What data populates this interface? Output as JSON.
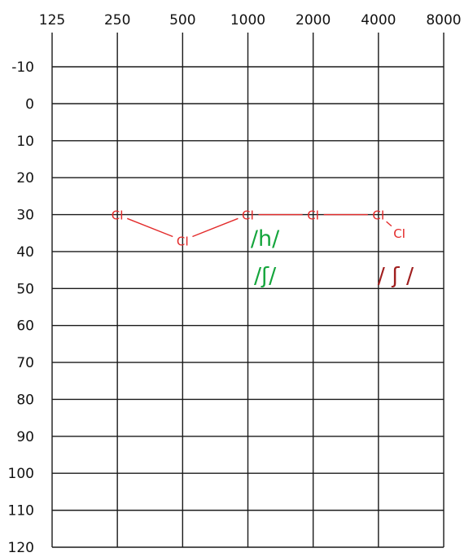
{
  "chart_data": {
    "type": "line",
    "x_scale": "log2",
    "x_ticks": [
      "125",
      "250",
      "500",
      "1000",
      "2000",
      "4000",
      "8000"
    ],
    "y_ticks": [
      "-10",
      "0",
      "10",
      "20",
      "30",
      "40",
      "50",
      "60",
      "70",
      "80",
      "90",
      "100",
      "110",
      "120"
    ],
    "xlim": [
      125,
      8000
    ],
    "ylim": [
      -10,
      120
    ],
    "y_inverted": true,
    "grid": true,
    "series": [
      {
        "marker_text": "CI",
        "color": "#e32b2b",
        "points": [
          {
            "x": 250,
            "y": 30
          },
          {
            "x": 500,
            "y": 37
          },
          {
            "x": 1000,
            "y": 30
          },
          {
            "x": 2000,
            "y": 30
          },
          {
            "x": 4000,
            "y": 30
          },
          {
            "x": 5000,
            "y": 35
          }
        ]
      }
    ],
    "annotations": [
      {
        "text": "/h/",
        "x": 1200,
        "y": 36.5,
        "color": "#14a53c"
      },
      {
        "text": "/ʃ/",
        "x": 1200,
        "y": 46.5,
        "color": "#14a53c"
      },
      {
        "text": "/ ʃ /",
        "x": 4800,
        "y": 46.5,
        "color": "#a01f1f"
      }
    ]
  }
}
